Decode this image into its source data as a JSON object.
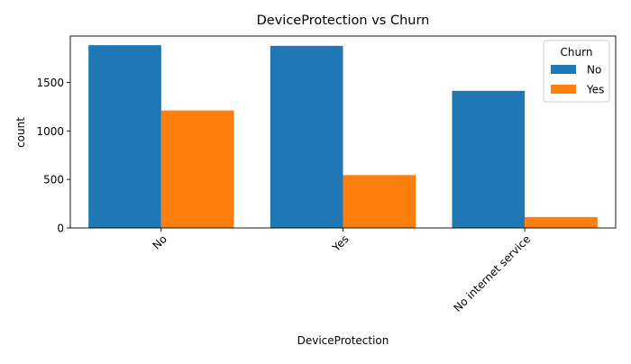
{
  "chart_data": {
    "type": "bar",
    "title": "DeviceProtection vs Churn",
    "xlabel": "DeviceProtection",
    "ylabel": "count",
    "categories": [
      "No",
      "Yes",
      "No internet service"
    ],
    "series": [
      {
        "name": "No",
        "color": "#1f77b4",
        "values": [
          1884,
          1877,
          1413
        ]
      },
      {
        "name": "Yes",
        "color": "#ff7f0e",
        "values": [
          1211,
          545,
          113
        ]
      }
    ],
    "yticks": [
      0,
      500,
      1000,
      1500
    ],
    "ylim": [
      0,
      1978
    ],
    "legend": {
      "title": "Churn",
      "placement": "top-right"
    },
    "grid": false
  }
}
